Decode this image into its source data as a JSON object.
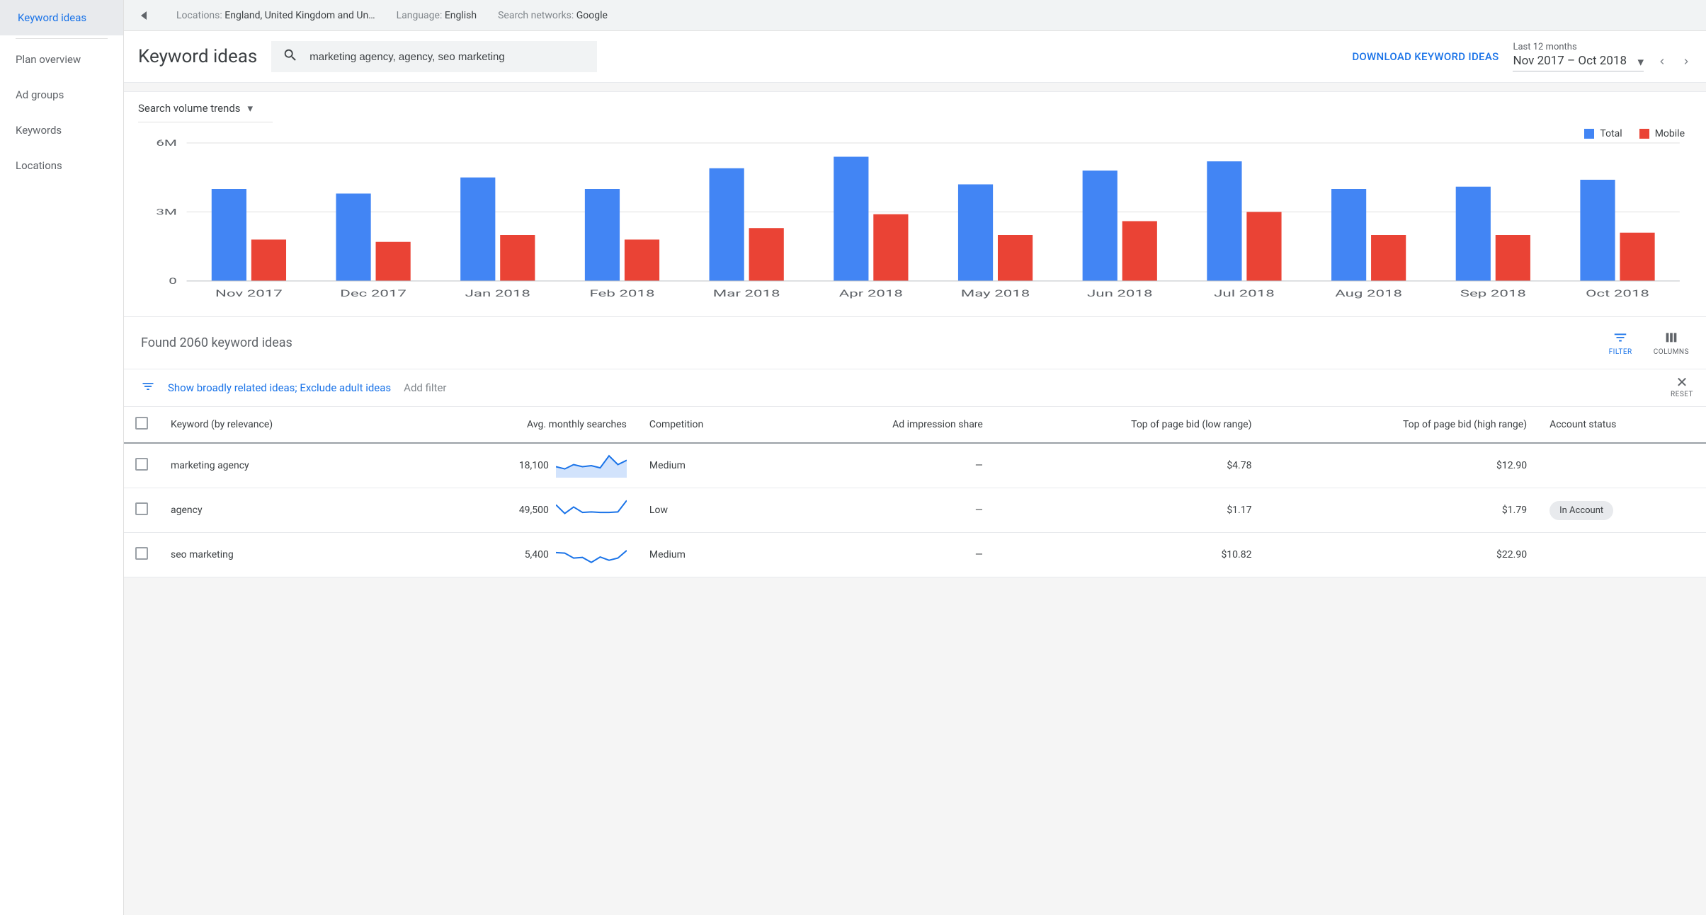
{
  "sidebar": {
    "items": [
      {
        "label": "Keyword ideas",
        "active": true
      },
      {
        "label": "Plan overview"
      },
      {
        "label": "Ad groups"
      },
      {
        "label": "Keywords"
      },
      {
        "label": "Locations"
      }
    ]
  },
  "topbar": {
    "locations_label": "Locations: ",
    "locations_value": "England, United Kingdom and Un…",
    "language_label": "Language: ",
    "language_value": "English",
    "networks_label": "Search networks: ",
    "networks_value": "Google"
  },
  "header": {
    "title": "Keyword ideas",
    "search_value": "marketing agency, agency, seo marketing",
    "download_label": "DOWNLOAD KEYWORD IDEAS",
    "date_small": "Last 12 months",
    "date_big": "Nov 2017 – Oct 2018"
  },
  "chart": {
    "title": "Search volume trends",
    "legend": {
      "total": "Total",
      "mobile": "Mobile"
    },
    "colors": {
      "total": "#4285f4",
      "mobile": "#ea4335",
      "axis": "#5f6368",
      "grid": "#e0e0e0",
      "tick_text": "#5f6368"
    },
    "y": {
      "max": 6,
      "ticks": [
        0,
        3,
        6
      ],
      "labels": [
        "0",
        "3M",
        "6M"
      ]
    },
    "categories": [
      "Nov 2017",
      "Dec 2017",
      "Jan 2018",
      "Feb 2018",
      "Mar 2018",
      "Apr 2018",
      "May 2018",
      "Jun 2018",
      "Jul 2018",
      "Aug 2018",
      "Sep 2018",
      "Oct 2018"
    ],
    "total_values": [
      4.0,
      3.8,
      4.5,
      4.0,
      4.9,
      5.4,
      4.2,
      4.8,
      5.2,
      4.0,
      4.1,
      4.4
    ],
    "mobile_values": [
      1.8,
      1.7,
      2.0,
      1.8,
      2.3,
      2.9,
      2.0,
      2.6,
      3.0,
      2.0,
      2.0,
      2.1
    ]
  },
  "results": {
    "found_text": "Found 2060 keyword ideas",
    "filter_label": "FILTER",
    "columns_label": "COLUMNS",
    "filter_text": "Show broadly related ideas; Exclude adult ideas",
    "add_filter": "Add filter",
    "reset_label": "RESET",
    "columns": {
      "keyword": "Keyword (by relevance)",
      "searches": "Avg. monthly searches",
      "competition": "Competition",
      "impression_share": "Ad impression share",
      "bid_low": "Top of page bid (low range)",
      "bid_high": "Top of page bid (high range)",
      "status": "Account status"
    },
    "rows": [
      {
        "keyword": "marketing agency",
        "searches": "18,100",
        "spark": [
          0.45,
          0.35,
          0.55,
          0.45,
          0.5,
          0.4,
          0.95,
          0.55,
          0.75
        ],
        "spark_fill": true,
        "competition": "Medium",
        "impression_share": "—",
        "bid_low": "$4.78",
        "bid_high": "$12.90",
        "status": ""
      },
      {
        "keyword": "agency",
        "searches": "49,500",
        "spark": [
          0.75,
          0.35,
          0.65,
          0.4,
          0.42,
          0.4,
          0.4,
          0.42,
          0.95
        ],
        "spark_fill": false,
        "competition": "Low",
        "impression_share": "—",
        "bid_low": "$1.17",
        "bid_high": "$1.79",
        "status": "In Account"
      },
      {
        "keyword": "seo marketing",
        "searches": "5,400",
        "spark": [
          0.6,
          0.58,
          0.35,
          0.38,
          0.15,
          0.4,
          0.25,
          0.35,
          0.7
        ],
        "spark_fill": false,
        "competition": "Medium",
        "impression_share": "—",
        "bid_low": "$10.82",
        "bid_high": "$22.90",
        "status": ""
      }
    ]
  }
}
